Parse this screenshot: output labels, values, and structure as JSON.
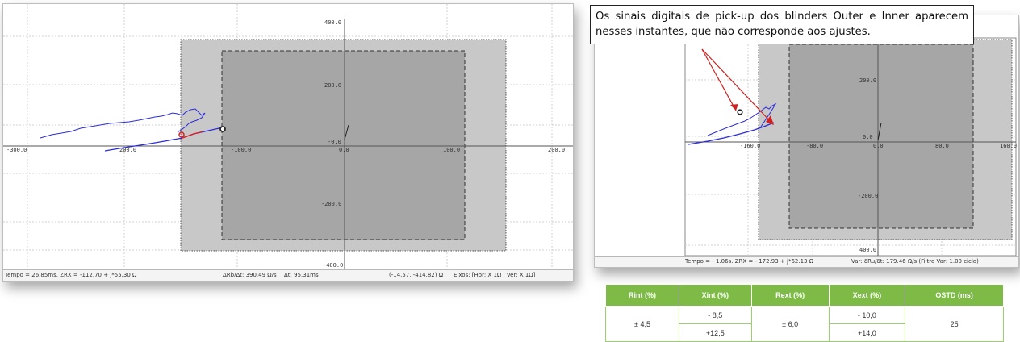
{
  "left_plot": {
    "x_ticks": [
      "-300.0",
      "200.0",
      "-100.0",
      "0.0",
      "100.0",
      "200.0"
    ],
    "y_ticks": [
      "400.0",
      "200.0",
      "-0.0",
      "-200.0",
      "-400.0"
    ],
    "status": {
      "tempo": "Tempo = 26.85ms. ZRX = -112.70 + j*55.30 Ω",
      "delta": "ΔRb/Δt: 390.49 Ω/s",
      "dt": "Δt: 95.31ms",
      "coords": "(-14.57, -414.82) Ω",
      "eixos": "Eixos: [Hor: X 1Ω , Ver: X 1Ω]"
    }
  },
  "right_plot": {
    "x_ticks": [
      "-160.0",
      "-80.0",
      "0.0",
      "80.0",
      "160.0"
    ],
    "y_ticks": [
      "200.0",
      "0.0",
      "-200.0",
      "400.0"
    ],
    "status": {
      "tempo": "Tempo = - 1.06s. ZRX = - 172.93 + j*62.13 Ω",
      "var": "Var: δRu/δt: 179.46 Ω/s (Filtro Var: 1.00 ciclo)"
    }
  },
  "callout": {
    "text": "Os sinais digitais de pick-up dos blinders Outer e Inner aparecem nesses instantes, que não corresponde aos ajustes."
  },
  "table": {
    "headers": [
      "Rint (%)",
      "Xint (%)",
      "Rext (%)",
      "Xext (%)",
      "OSTD (ms)"
    ],
    "r_int": "± 4,5",
    "x_int_1": "- 8,5",
    "x_int_2": "+12,5",
    "r_ext": "± 6,0",
    "x_ext_1": "- 10,0",
    "x_ext_2": "+14,0",
    "ostd": "25"
  },
  "colors": {
    "outer_blinder": "#c8c8c8",
    "inner_blinder": "#a6a6a6",
    "trajectory": "#2b2bdc",
    "marker_red": "#e02020",
    "marker_black": "#222222",
    "table_header": "#7dbb46"
  }
}
